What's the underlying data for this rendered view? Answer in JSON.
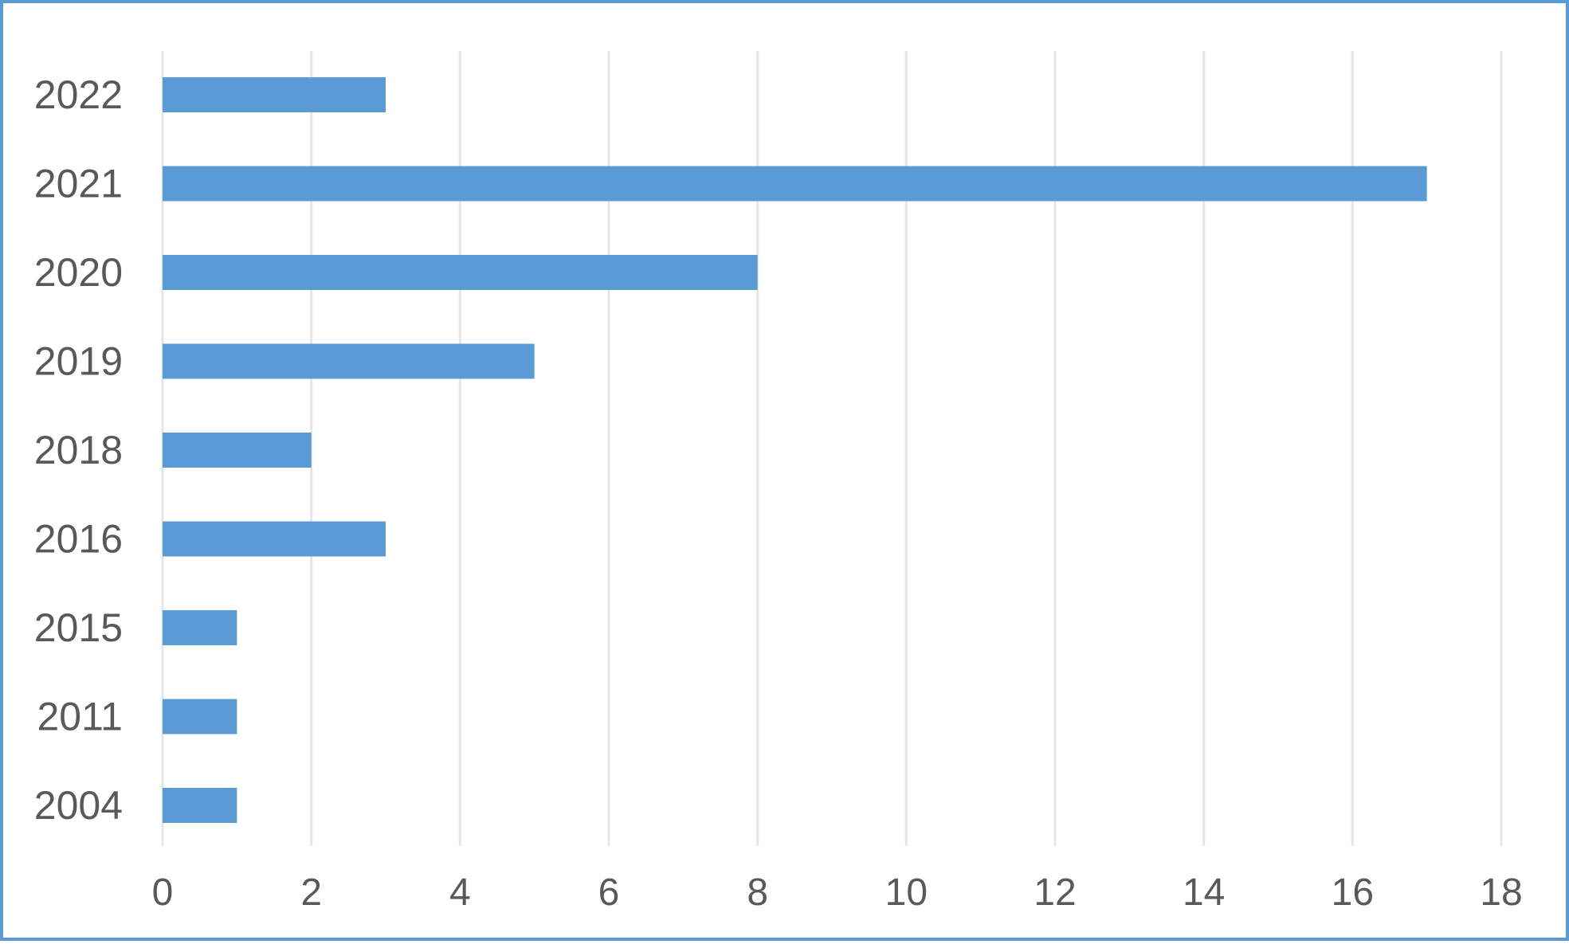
{
  "chart_data": {
    "type": "bar",
    "orientation": "horizontal",
    "categories": [
      "2022",
      "2021",
      "2020",
      "2019",
      "2018",
      "2016",
      "2015",
      "2011",
      "2004"
    ],
    "values": [
      3,
      17,
      8,
      5,
      2,
      3,
      1,
      1,
      1
    ],
    "xlim": [
      0,
      18
    ],
    "xticks": [
      "0",
      "2",
      "4",
      "6",
      "8",
      "10",
      "12",
      "14",
      "16",
      "18"
    ],
    "grid": true,
    "legend": "none",
    "colors": {
      "bar": "#5b9bd5",
      "grid": "#e7e6e6",
      "text": "#595959",
      "border": "#5b9bd5"
    }
  }
}
